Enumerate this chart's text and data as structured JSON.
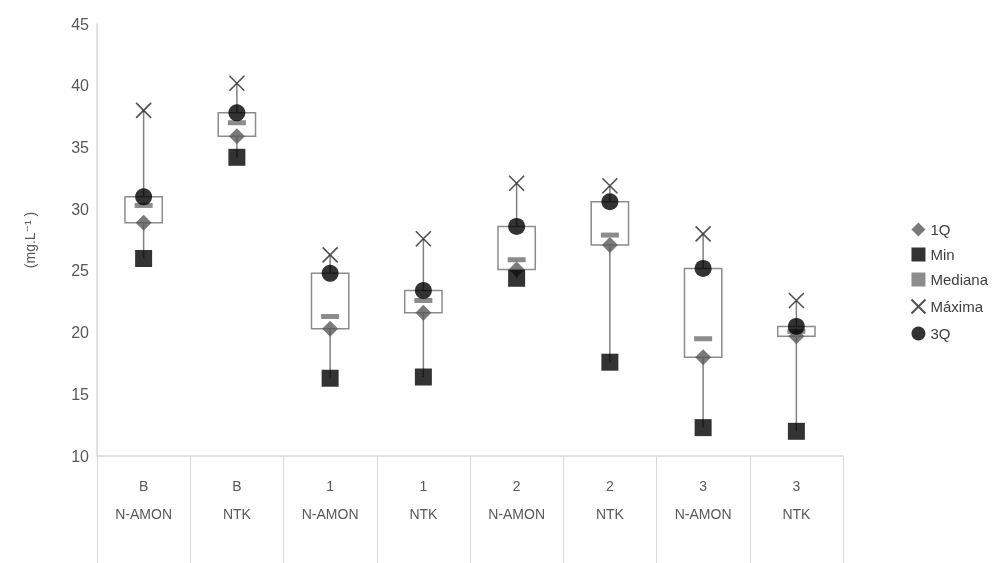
{
  "chart_data": {
    "type": "box",
    "ylabel": "(mg.L⁻¹ )",
    "categories": [
      "B\nN-AMON",
      "B\nNTK",
      "1\nN-AMON",
      "1\nNTK",
      "2\nN-AMON",
      "2\nNTK",
      "3\nN-AMON",
      "3\nNTK"
    ],
    "ylim": [
      10,
      45
    ],
    "yticks": [
      10,
      15,
      20,
      25,
      30,
      35,
      40,
      45
    ],
    "legend": "right",
    "series": [
      {
        "name": "1Q",
        "type": "scatter",
        "marker": "diamond",
        "color": "#595959",
        "values": [
          28.9,
          35.9,
          20.3,
          21.6,
          25.1,
          27.1,
          18.0,
          19.7
        ]
      },
      {
        "name": "Min",
        "type": "scatter",
        "marker": "square",
        "color": "#000000",
        "values": [
          26.0,
          34.2,
          16.3,
          16.4,
          24.4,
          17.6,
          12.3,
          12.0
        ]
      },
      {
        "name": "Mediana",
        "color": "#8c8c8c",
        "boxes": [
          {
            "low": 26.0,
            "q1": 28.9,
            "median": 30.3,
            "q3": 31.0,
            "high": 38.0
          },
          {
            "low": 34.2,
            "q1": 35.9,
            "median": 37.0,
            "q3": 37.8,
            "high": 40.2
          },
          {
            "low": 16.3,
            "q1": 20.3,
            "median": 21.3,
            "q3": 24.8,
            "high": 26.3
          },
          {
            "low": 16.4,
            "q1": 21.6,
            "median": 22.6,
            "q3": 23.4,
            "high": 27.6
          },
          {
            "low": 24.4,
            "q1": 25.1,
            "median": 25.9,
            "q3": 28.6,
            "high": 32.1
          },
          {
            "low": 17.6,
            "q1": 27.1,
            "median": 27.9,
            "q3": 30.6,
            "high": 31.9
          },
          {
            "low": 12.3,
            "q1": 18.0,
            "median": 19.5,
            "q3": 25.2,
            "high": 28.0
          },
          {
            "low": 12.0,
            "q1": 19.7,
            "median": 20.1,
            "q3": 20.5,
            "high": 22.6
          }
        ]
      },
      {
        "name": "Máxima",
        "type": "scatter",
        "marker": "cross",
        "color": "#262626",
        "values": [
          38.0,
          40.2,
          26.3,
          27.6,
          32.1,
          31.9,
          28.0,
          22.6
        ]
      },
      {
        "name": "3Q",
        "type": "scatter",
        "marker": "circle",
        "color": "#000000",
        "values": [
          31.0,
          37.8,
          24.8,
          23.4,
          28.6,
          30.6,
          25.2,
          20.5
        ]
      }
    ]
  }
}
